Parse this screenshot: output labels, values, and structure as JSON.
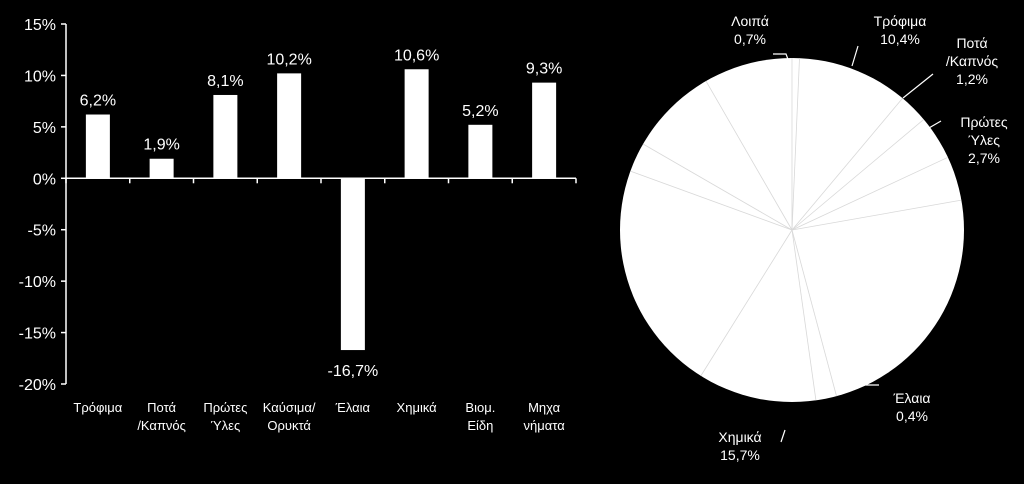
{
  "chart_data": [
    {
      "type": "bar",
      "categories": [
        [
          "Τρόφιμα"
        ],
        [
          "Ποτά",
          "/Καπνός"
        ],
        [
          "Πρώτες",
          "Ύλες"
        ],
        [
          "Καύσιμα/",
          "Ορυκτά"
        ],
        [
          "Έλαια"
        ],
        [
          "Χημικά"
        ],
        [
          "Βιομ.",
          "Είδη"
        ],
        [
          "Μηχα",
          "νήματα"
        ]
      ],
      "values": [
        6.2,
        1.9,
        8.1,
        10.2,
        -16.7,
        10.6,
        5.2,
        9.3
      ],
      "value_labels": [
        "6,2%",
        "1,9%",
        "8,1%",
        "10,2%",
        "-16,7%",
        "10,6%",
        "5,2%",
        "9,3%"
      ],
      "ylim": [
        -20,
        15
      ],
      "yticks": [
        15,
        10,
        5,
        0,
        -5,
        -10,
        -15,
        -20
      ],
      "ytick_labels": [
        "15%",
        "10%",
        "5%",
        "0%",
        "-5%",
        "-10%",
        "-15%",
        "-20%"
      ],
      "bar_color": "#ffffff",
      "background": "#000000"
    },
    {
      "type": "pie",
      "slices": [
        {
          "label": [
            "Λοιπά"
          ],
          "value": 0.7,
          "value_label": "0,7%"
        },
        {
          "label": [
            "Τρόφιμα"
          ],
          "value": 10.4,
          "value_label": "10,4%"
        },
        {
          "label": [
            "Ποτά",
            "/Καπνός"
          ],
          "value": 1.2,
          "value_label": "1,2%"
        },
        {
          "label": [
            "Πρώτες",
            "Ύλες"
          ],
          "value": 2.7,
          "value_label": "2,7%"
        },
        {
          "label": [
            "Έλαια"
          ],
          "value": 0.4,
          "value_label": "0,4%"
        },
        {
          "label": [
            "Χημικά"
          ],
          "value": 15.7,
          "value_label": "15,7%"
        }
      ],
      "fill_color": "#ffffff"
    }
  ]
}
